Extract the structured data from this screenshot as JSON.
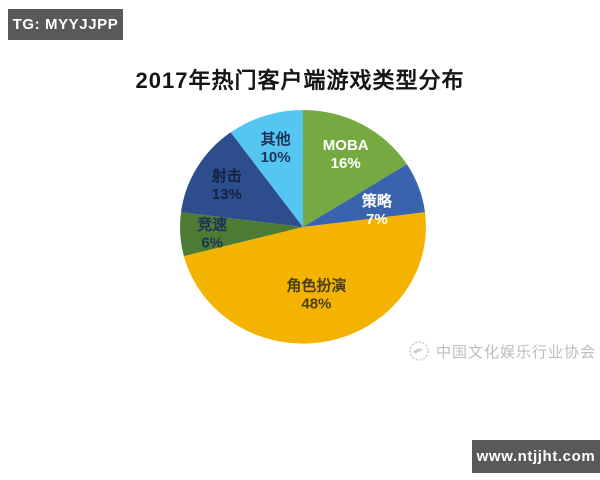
{
  "overlays": {
    "top_left_badge": "TG: MYYJJPP",
    "bottom_right_badge": "www.ntjjht.com",
    "badge_bg_color": "#595959",
    "badge_text_color": "#ffffff"
  },
  "chart_data": {
    "type": "pie",
    "title": "2017年热门客户端游戏类型分布",
    "start_angle_deg": 0,
    "direction": "clockwise",
    "legend_position": "none",
    "unit": "%",
    "categories": [
      "MOBA",
      "策略",
      "角色扮演",
      "竞速",
      "射击",
      "其他"
    ],
    "values": [
      16,
      7,
      48,
      6,
      13,
      10
    ],
    "slices": [
      {
        "label": "MOBA",
        "value_label": "16%",
        "color": "#74aa41",
        "text_color": "#ffffff"
      },
      {
        "label": "策略",
        "value_label": "7%",
        "color": "#3a63ae",
        "text_color": "#ffffff"
      },
      {
        "label": "角色扮演",
        "value_label": "48%",
        "color": "#f5b301",
        "text_color": "#4a3f17"
      },
      {
        "label": "竞速",
        "value_label": "6%",
        "color": "#4e7b33",
        "text_color": "#1d3257"
      },
      {
        "label": "射击",
        "value_label": "13%",
        "color": "#2e4d8d",
        "text_color": "#13223f"
      },
      {
        "label": "其他",
        "value_label": "10%",
        "color": "#55c6f2",
        "text_color": "#1d3257"
      }
    ],
    "label_layout": [
      {
        "angle": 28.8,
        "r": 0.72
      },
      {
        "angle": 75.7,
        "r": 0.62
      },
      {
        "angle": 169.2,
        "r": 0.58
      },
      {
        "angle": 266.4,
        "r": 0.74
      },
      {
        "angle": 300.6,
        "r": 0.72
      },
      {
        "angle": 342.0,
        "r": 0.72
      }
    ]
  },
  "watermark": {
    "logo": "dove-in-circle-icon",
    "text": "中国文化娱乐行业协会",
    "color": "#bdbdbd"
  }
}
